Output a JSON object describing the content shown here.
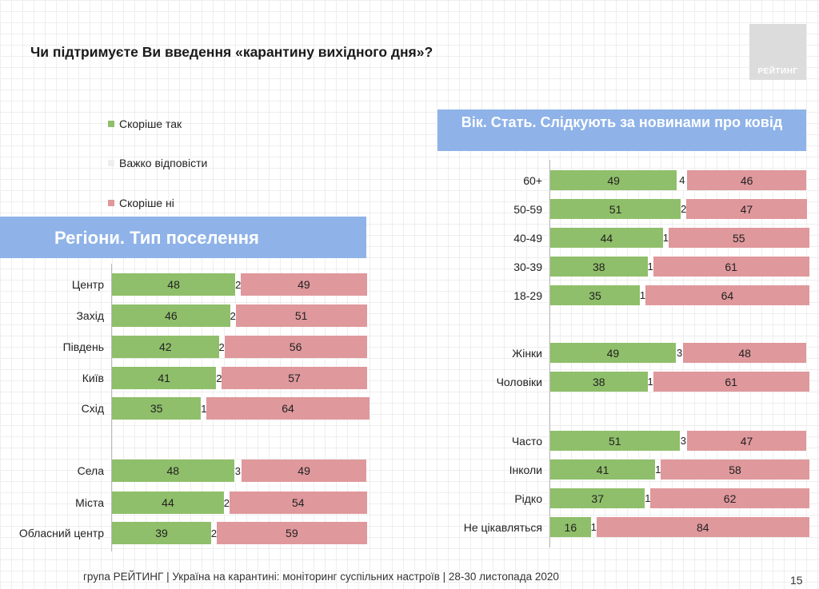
{
  "page": {
    "title": "Чи підтримуєте Ви введення «карантину вихідного дня»?",
    "logo_text": "РЕЙТИНГ",
    "footer": "група РЕЙТИНГ | Україна на карантині: моніторинг суспільних настроїв | 28-30 листопада 2020",
    "page_number": "15"
  },
  "legend": [
    {
      "label": "Скоріше так",
      "color": "#8fbf6a"
    },
    {
      "label": "Важко відповісти",
      "color": "#eeeeee"
    },
    {
      "label": "Скоріше ні",
      "color": "#df989c"
    }
  ],
  "colors": {
    "yes": "#8fbf6a",
    "hard": "#ffffff",
    "no": "#df989c",
    "banner": "#8fb3e8"
  },
  "chart_data": [
    {
      "type": "bar",
      "stacked": true,
      "orientation": "horizontal",
      "title": "Регіони. Тип поселення",
      "series_names": [
        "Скоріше так",
        "Важко відповісти",
        "Скоріше ні"
      ],
      "rows": [
        {
          "label": "Центр",
          "values": [
            48,
            2,
            49
          ]
        },
        {
          "label": "Захід",
          "values": [
            46,
            2,
            51
          ]
        },
        {
          "label": "Південь",
          "values": [
            42,
            2,
            56
          ]
        },
        {
          "label": "Київ",
          "values": [
            41,
            2,
            57
          ]
        },
        {
          "label": "Схід",
          "values": [
            35,
            1,
            64
          ]
        },
        {
          "label": "Села",
          "values": [
            48,
            3,
            49
          ]
        },
        {
          "label": "Міста",
          "values": [
            44,
            2,
            54
          ]
        },
        {
          "label": "Обласний центр",
          "values": [
            39,
            2,
            59
          ]
        }
      ]
    },
    {
      "type": "bar",
      "stacked": true,
      "orientation": "horizontal",
      "title": "Вік. Стать. Слідкують за новинами про ковід",
      "series_names": [
        "Скоріше так",
        "Важко відповісти",
        "Скоріше ні"
      ],
      "rows": [
        {
          "label": "60+",
          "values": [
            49,
            4,
            46
          ]
        },
        {
          "label": "50-59",
          "values": [
            51,
            2,
            47
          ]
        },
        {
          "label": "40-49",
          "values": [
            44,
            1,
            55
          ]
        },
        {
          "label": "30-39",
          "values": [
            38,
            1,
            61
          ]
        },
        {
          "label": "18-29",
          "values": [
            35,
            1,
            64
          ]
        },
        {
          "label": "Жінки",
          "values": [
            49,
            3,
            48
          ]
        },
        {
          "label": "Чоловіки",
          "values": [
            38,
            1,
            61
          ]
        },
        {
          "label": "Часто",
          "values": [
            51,
            3,
            47
          ]
        },
        {
          "label": "Інколи",
          "values": [
            41,
            1,
            58
          ]
        },
        {
          "label": "Рідко",
          "values": [
            37,
            1,
            62
          ]
        },
        {
          "label": "Не цікавляться",
          "values": [
            16,
            1,
            84
          ]
        }
      ]
    }
  ]
}
